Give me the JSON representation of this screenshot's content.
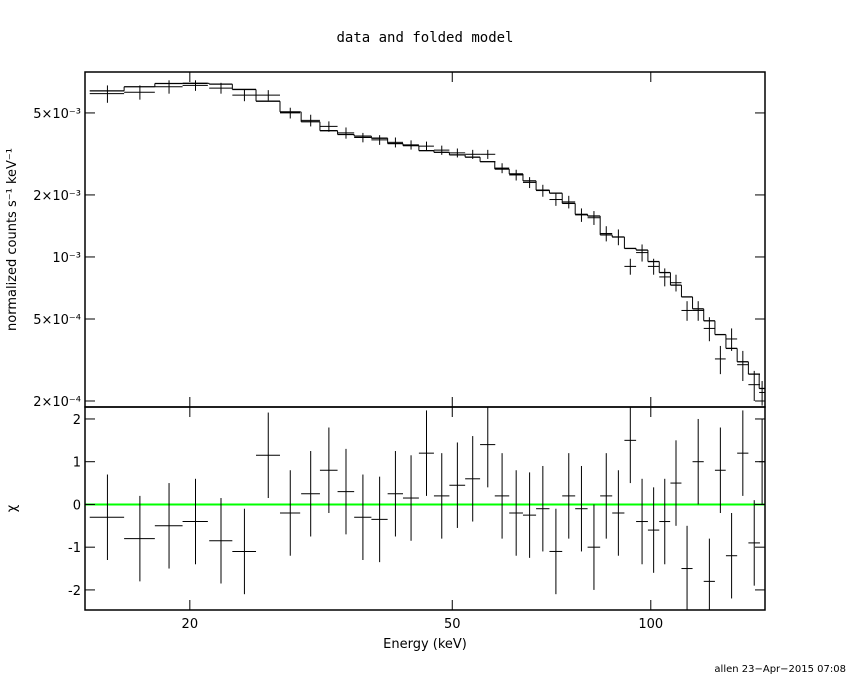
{
  "title": "data and folded model",
  "footer": "allen 23−Apr−2015 07:08",
  "chart_data": [
    {
      "type": "spectrum",
      "ylabel": "normalized counts s⁻¹ keV⁻¹",
      "xlog": true,
      "ylog": true,
      "xlim": [
        13.87,
        149
      ],
      "ylim": [
        0.000187,
        0.0079
      ],
      "xticks": [
        20,
        50,
        100
      ],
      "yticks": [
        {
          "value": 0.0002,
          "label": "2×10⁻⁴"
        },
        {
          "value": 0.0005,
          "label": "5×10⁻⁴"
        },
        {
          "value": 0.001,
          "label": "10⁻³"
        },
        {
          "value": 0.002,
          "label": "2×10⁻³"
        },
        {
          "value": 0.005,
          "label": "5×10⁻³"
        }
      ],
      "color": "#000000",
      "model_color": "#000000",
      "x": [
        15.0,
        16.8,
        18.6,
        20.4,
        22.3,
        24.2,
        26.3,
        28.4,
        30.5,
        32.5,
        34.5,
        36.6,
        38.8,
        41.0,
        43.3,
        45.7,
        48.2,
        50.9,
        53.7,
        56.6,
        59.5,
        62.5,
        65.5,
        68.6,
        71.8,
        75.1,
        78.5,
        82.0,
        85.6,
        89.3,
        93.1,
        97.0,
        101.0,
        105.0,
        109.2,
        113.5,
        118.0,
        122.7,
        127.5,
        132.6,
        137.9,
        143.5,
        147.5
      ],
      "xerr": [
        0.9,
        0.9,
        0.9,
        0.9,
        0.9,
        1.0,
        1.1,
        1.0,
        1.0,
        1.0,
        1.0,
        1.1,
        1.1,
        1.1,
        1.2,
        1.2,
        1.3,
        1.4,
        1.4,
        1.5,
        1.5,
        1.5,
        1.5,
        1.6,
        1.6,
        1.7,
        1.7,
        1.8,
        1.8,
        1.9,
        1.9,
        2.0,
        2.0,
        2.0,
        2.1,
        2.2,
        2.3,
        2.4,
        2.4,
        2.6,
        2.7,
        2.9,
        1.5
      ],
      "values": [
        0.0062,
        0.0063,
        0.0067,
        0.0068,
        0.0066,
        0.0061,
        0.0061,
        0.005,
        0.0046,
        0.0043,
        0.004,
        0.0038,
        0.0037,
        0.0036,
        0.0035,
        0.00345,
        0.0033,
        0.0032,
        0.00315,
        0.00315,
        0.0027,
        0.0025,
        0.0023,
        0.0021,
        0.0019,
        0.00185,
        0.0016,
        0.00155,
        0.0013,
        0.00125,
        0.0009,
        0.00105,
        0.0009,
        0.0008,
        0.00075,
        0.00055,
        0.00055,
        0.00045,
        0.00032,
        0.0004,
        0.0003,
        0.00024,
        0.00022
      ],
      "errors": [
        0.0006,
        0.0005,
        0.0005,
        0.0004,
        0.0004,
        0.0004,
        0.00035,
        0.0003,
        0.0003,
        0.00025,
        0.00025,
        0.0002,
        0.0002,
        0.0002,
        0.00018,
        0.00018,
        0.00017,
        0.00016,
        0.00016,
        0.00016,
        0.00015,
        0.00015,
        0.00014,
        0.00014,
        0.00013,
        0.00013,
        0.00012,
        0.00012,
        0.00011,
        0.00011,
        8e-05,
        0.0001,
        8e-05,
        8e-05,
        7e-05,
        6e-05,
        6e-05,
        6e-05,
        5e-05,
        5e-05,
        5e-05,
        4e-05,
        3e-05
      ],
      "model": [
        0.0064,
        0.0067,
        0.00695,
        0.00696,
        0.0069,
        0.0065,
        0.0057,
        0.00506,
        0.00453,
        0.0041,
        0.00393,
        0.00386,
        0.00377,
        0.00355,
        0.00347,
        0.00328,
        0.00322,
        0.00313,
        0.00305,
        0.0029,
        0.00267,
        0.00253,
        0.00234,
        0.00211,
        0.00204,
        0.00182,
        0.00161,
        0.00158,
        0.00128,
        0.00125,
        0.0011,
        0.00108,
        0.00095,
        0.00084,
        0.00073,
        0.00064,
        0.00056,
        0.00049,
        0.00042,
        0.00036,
        0.00031,
        0.00027,
        0.00023
      ]
    },
    {
      "type": "residual",
      "xlabel": "Energy (keV)",
      "ylabel": "χ",
      "xlog": true,
      "xlim": [
        13.87,
        149
      ],
      "ylim": [
        -2.47,
        2.28
      ],
      "xticks": [
        20,
        50,
        100
      ],
      "yticks": [
        -2,
        -1,
        0,
        1,
        2
      ],
      "color": "#000000",
      "hline": 0,
      "hline_color": "#00ff00",
      "x": [
        15.0,
        16.8,
        18.6,
        20.4,
        22.3,
        24.2,
        26.3,
        28.4,
        30.5,
        32.5,
        34.5,
        36.6,
        38.8,
        41.0,
        43.3,
        45.7,
        48.2,
        50.9,
        53.7,
        56.6,
        59.5,
        62.5,
        65.5,
        68.6,
        71.8,
        75.1,
        78.5,
        82.0,
        85.6,
        89.3,
        93.1,
        97.0,
        101.0,
        105.0,
        109.2,
        113.5,
        118.0,
        122.7,
        127.5,
        132.6,
        137.9,
        143.5,
        147.5
      ],
      "xerr": [
        0.9,
        0.9,
        0.9,
        0.9,
        0.9,
        1.0,
        1.1,
        1.0,
        1.0,
        1.0,
        1.0,
        1.1,
        1.1,
        1.1,
        1.2,
        1.2,
        1.3,
        1.4,
        1.4,
        1.5,
        1.5,
        1.5,
        1.5,
        1.6,
        1.6,
        1.7,
        1.7,
        1.8,
        1.8,
        1.9,
        1.9,
        2.0,
        2.0,
        2.0,
        2.1,
        2.2,
        2.3,
        2.4,
        2.4,
        2.6,
        2.7,
        2.9,
        1.5
      ],
      "values": [
        -0.3,
        -0.8,
        -0.5,
        -0.4,
        -0.85,
        -1.1,
        1.15,
        -0.2,
        0.25,
        0.8,
        0.3,
        -0.3,
        -0.35,
        0.25,
        0.15,
        1.2,
        0.2,
        0.45,
        0.6,
        1.4,
        0.2,
        -0.2,
        -0.25,
        -0.1,
        -1.1,
        0.2,
        -0.1,
        -1.0,
        0.2,
        -0.2,
        1.5,
        -0.4,
        -0.6,
        -0.4,
        0.5,
        -1.5,
        1.0,
        -1.8,
        0.8,
        -1.2,
        1.2,
        -0.9,
        1.0
      ],
      "errors": [
        1,
        1,
        1,
        1,
        1,
        1,
        1,
        1,
        1,
        1,
        1,
        1,
        1,
        1,
        1,
        1,
        1,
        1,
        1,
        1,
        1,
        1,
        1,
        1,
        1,
        1,
        1,
        1,
        1,
        1,
        1,
        1,
        1,
        1,
        1,
        1,
        1,
        1,
        1,
        1,
        1,
        1,
        1
      ]
    }
  ]
}
